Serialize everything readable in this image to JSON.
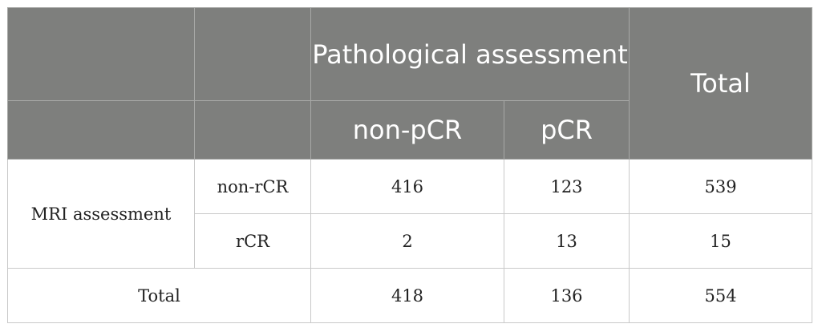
{
  "table": {
    "header": {
      "group_label": "Pathological assessment",
      "total_label": "Total",
      "sub_columns": [
        "non-pCR",
        "pCR"
      ]
    },
    "row_group_label": "MRI assessment",
    "rows": [
      {
        "label": "non-rCR",
        "values": [
          "416",
          "123",
          "539"
        ]
      },
      {
        "label": "rCR",
        "values": [
          "2",
          "13",
          "15"
        ]
      }
    ],
    "total_row": {
      "label": "Total",
      "values": [
        "418",
        "136",
        "554"
      ]
    }
  },
  "colors": {
    "header_bg": "#7e7f7d",
    "header_text": "#ffffff",
    "border": "#c9c9c9"
  }
}
